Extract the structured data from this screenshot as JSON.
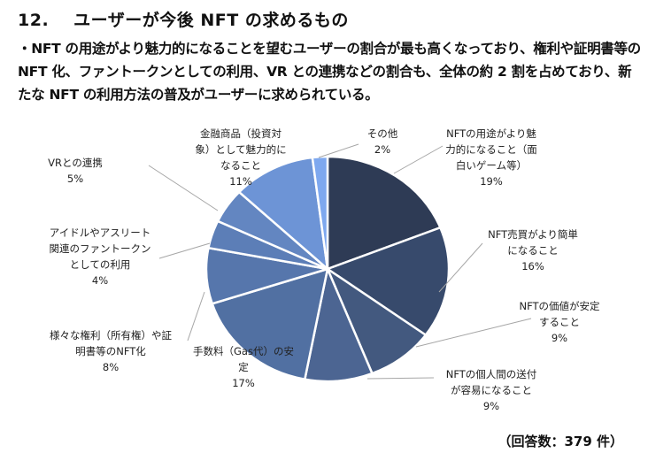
{
  "heading": {
    "number": "12.",
    "title": "ユーザーが今後 NFT の求めるもの"
  },
  "summary": "・NFT の用途がより魅力的になることを望むユーザーの割合が最も高くなっており、権利や証明書等の NFT 化、ファントークンとしての利用、VR との連携などの割合も、全体の約 2 割を占めており、新たな NFT の利用方法の普及がユーザーに求められている。",
  "chart_data": {
    "type": "pie",
    "start": "top, clockwise",
    "slices": [
      {
        "label": [
          "NFTの用途がより魅",
          "力的になること（面",
          "白いゲーム等）"
        ],
        "value": 19,
        "value_label": "19%",
        "color": "#2e3b55"
      },
      {
        "label": [
          "NFT売買がより簡単",
          "になること"
        ],
        "value": 16,
        "value_label": "16%",
        "color": "#374a6c"
      },
      {
        "label": [
          "NFTの価値が安定",
          "すること"
        ],
        "value": 9,
        "value_label": "9%",
        "color": "#43597f"
      },
      {
        "label": [
          "NFTの個人間の送付",
          "が容易になること"
        ],
        "value": 9,
        "value_label": "9%",
        "color": "#4c6592"
      },
      {
        "label": [
          "手数料（Gas代）の安",
          "定"
        ],
        "value": 17,
        "value_label": "17%",
        "color": "#5170a2"
      },
      {
        "label": [
          "様々な権利（所有権）や証",
          "明書等のNFT化"
        ],
        "value": 8,
        "value_label": "8%",
        "color": "#5676ac"
      },
      {
        "label": [
          "アイドルやアスリート",
          "関連のファントークン",
          "としての利用"
        ],
        "value": 4,
        "value_label": "4%",
        "color": "#5c7eb7"
      },
      {
        "label": [
          "VRとの連携"
        ],
        "value": 5,
        "value_label": "5%",
        "color": "#6386c1"
      },
      {
        "label": [
          "金融商品（投資対",
          "象）として魅力的に",
          "なること"
        ],
        "value": 11,
        "value_label": "11%",
        "color": "#6d94d6"
      },
      {
        "label": [
          "その他"
        ],
        "value": 2,
        "value_label": "2%",
        "color": "#7ea8ef"
      }
    ]
  },
  "footer": "（回答数：379 件）"
}
